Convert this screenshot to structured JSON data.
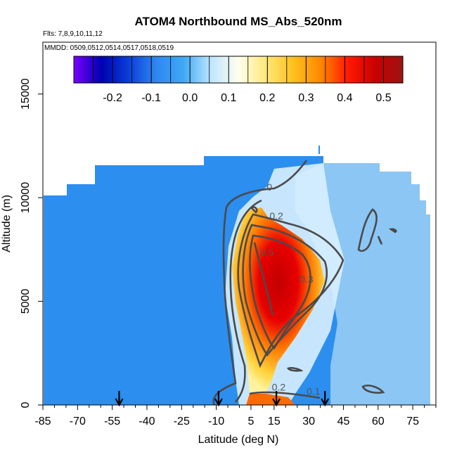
{
  "chart_data": {
    "type": "heatmap",
    "title": "ATOM4 Northbound MS_Abs_520nm",
    "flights_note": "Flts: 7,8,9,10,11,12",
    "dates_note": "MMDD: 0509,0512,0514,0517,0518,0519",
    "xlabel": "Latitude (deg N)",
    "ylabel": "Altitude (m)",
    "xlim": [
      -85,
      85
    ],
    "ylim": [
      0,
      17500
    ],
    "x_ticks": [
      -85,
      -70,
      -55,
      -40,
      -25,
      -10,
      5,
      15,
      30,
      45,
      60,
      75
    ],
    "x_tick_labels": [
      "-85",
      "-70",
      "-55",
      "-40",
      "-25",
      "-10",
      "5",
      "15",
      "30",
      "45",
      "60",
      "75"
    ],
    "y_ticks": [
      0,
      5000,
      10000,
      15000
    ],
    "y_tick_labels": [
      "0",
      "5000",
      "10000",
      "15000"
    ],
    "colorbar": {
      "range": [
        -0.3,
        0.55
      ],
      "ticks": [
        -0.2,
        -0.1,
        0.0,
        0.1,
        0.2,
        0.3,
        0.4,
        0.5
      ],
      "tick_labels": [
        "-0.2",
        "-0.1",
        "0.0",
        "0.1",
        "0.2",
        "0.3",
        "0.4",
        "0.5"
      ],
      "colors": [
        "#7b00ff",
        "#0000b0",
        "#0a3fd8",
        "#2f86f0",
        "#3fa8f5",
        "#bfe6ff",
        "#ffffee",
        "#ffe97a",
        "#ffc020",
        "#ff8800",
        "#ff1a00",
        "#c80000",
        "#9b1414"
      ]
    },
    "contour_labels": [
      {
        "text": "0",
        "x": 13,
        "y": 10350
      },
      {
        "text": "0.2",
        "x": 16,
        "y": 8950
      },
      {
        "text": "0.5",
        "x": 12,
        "y": 7200
      },
      {
        "text": "0.3",
        "x": 29,
        "y": 5900
      },
      {
        "text": "0.2",
        "x": 17,
        "y": 700
      },
      {
        "text": "0.1",
        "x": 32,
        "y": 500
      }
    ],
    "flight_arrows_lat": [
      -52,
      -9,
      16,
      37
    ]
  }
}
